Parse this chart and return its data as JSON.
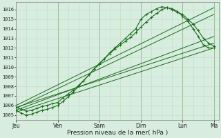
{
  "xlabel": "Pression niveau de la mer( hPa )",
  "bg_color": "#d8ede0",
  "grid_color_major": "#99bb99",
  "grid_color_minor": "#bbddbb",
  "line_color": "#1a6b1a",
  "ylim": [
    1004.5,
    1016.8
  ],
  "yticks": [
    1005,
    1006,
    1007,
    1008,
    1009,
    1010,
    1011,
    1012,
    1013,
    1014,
    1015,
    1016
  ],
  "day_labels": [
    "Jeu",
    "Ven",
    "Sam",
    "Dim",
    "Lun",
    "Ma"
  ],
  "day_positions": [
    0,
    24,
    48,
    72,
    96,
    114
  ],
  "total_hours": 117,
  "series": [
    {
      "x": [
        0,
        3,
        6,
        9,
        12,
        15,
        18,
        21,
        24,
        27,
        30,
        33,
        36,
        39,
        42,
        45,
        48,
        51,
        54,
        57,
        60,
        63,
        66,
        69,
        72,
        75,
        78,
        81,
        84,
        87,
        90,
        93,
        96,
        99,
        102,
        105,
        108,
        111,
        114
      ],
      "y": [
        1005.8,
        1005.6,
        1005.4,
        1005.5,
        1005.7,
        1005.9,
        1006.0,
        1006.2,
        1006.3,
        1006.8,
        1007.2,
        1007.6,
        1008.1,
        1008.6,
        1009.2,
        1009.8,
        1010.4,
        1010.9,
        1011.5,
        1012.0,
        1012.5,
        1013.0,
        1013.5,
        1014.0,
        1015.0,
        1015.5,
        1015.8,
        1016.1,
        1016.3,
        1016.2,
        1016.0,
        1015.7,
        1015.5,
        1015.0,
        1014.5,
        1013.8,
        1013.0,
        1012.5,
        1012.2
      ],
      "lw": 0.8,
      "ls": "-",
      "marker": "+"
    },
    {
      "x": [
        0,
        3,
        6,
        9,
        12,
        15,
        18,
        21,
        24,
        27,
        30,
        33,
        36,
        39,
        42,
        45,
        48,
        51,
        54,
        57,
        60,
        63,
        66,
        69,
        72,
        75,
        78,
        81,
        84,
        87,
        90,
        93,
        96,
        99,
        102,
        105,
        108,
        111,
        114
      ],
      "y": [
        1005.5,
        1005.2,
        1005.0,
        1005.1,
        1005.3,
        1005.5,
        1005.6,
        1005.8,
        1006.0,
        1006.4,
        1006.9,
        1007.4,
        1008.0,
        1008.6,
        1009.2,
        1009.8,
        1010.3,
        1010.9,
        1011.4,
        1011.9,
        1012.3,
        1012.7,
        1013.1,
        1013.6,
        1014.2,
        1014.7,
        1015.2,
        1015.6,
        1016.0,
        1016.2,
        1016.1,
        1015.8,
        1015.3,
        1014.8,
        1014.0,
        1013.2,
        1012.3,
        1012.0,
        1012.0
      ],
      "lw": 0.8,
      "ls": "-",
      "marker": "+"
    },
    {
      "x": [
        0,
        114
      ],
      "y": [
        1005.8,
        1012.5
      ],
      "lw": 0.7,
      "ls": "-",
      "marker": null
    },
    {
      "x": [
        0,
        114
      ],
      "y": [
        1005.5,
        1013.2
      ],
      "lw": 0.7,
      "ls": "-",
      "marker": null
    },
    {
      "x": [
        0,
        114
      ],
      "y": [
        1006.0,
        1016.2
      ],
      "lw": 0.7,
      "ls": "-",
      "marker": null
    },
    {
      "x": [
        0,
        114
      ],
      "y": [
        1005.7,
        1015.5
      ],
      "lw": 0.7,
      "ls": "-",
      "marker": null
    },
    {
      "x": [
        0,
        114
      ],
      "y": [
        1005.3,
        1012.0
      ],
      "lw": 0.7,
      "ls": "-",
      "marker": null
    }
  ]
}
